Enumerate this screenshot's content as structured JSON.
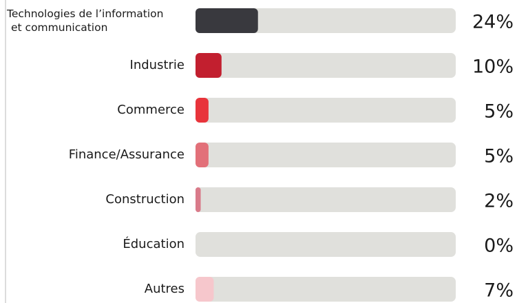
{
  "chart_data": {
    "type": "bar",
    "orientation": "horizontal",
    "categories": [
      "Technologies de l’information\net communication",
      "Industrie",
      "Commerce",
      "Finance/Assurance",
      "Construction",
      "Éducation",
      "Autres"
    ],
    "values": [
      24,
      10,
      5,
      5,
      2,
      0,
      7
    ],
    "value_labels": [
      "24%",
      "10%",
      "5%",
      "5%",
      "2%",
      "0%",
      "7%"
    ],
    "colors": [
      "#39393e",
      "#c21f2f",
      "#e8343b",
      "#e27079",
      "#d97b8a",
      "#e0e0dc",
      "#f6c7cc"
    ],
    "track_color": "#e0e0dc",
    "xlim": [
      0,
      100
    ]
  }
}
